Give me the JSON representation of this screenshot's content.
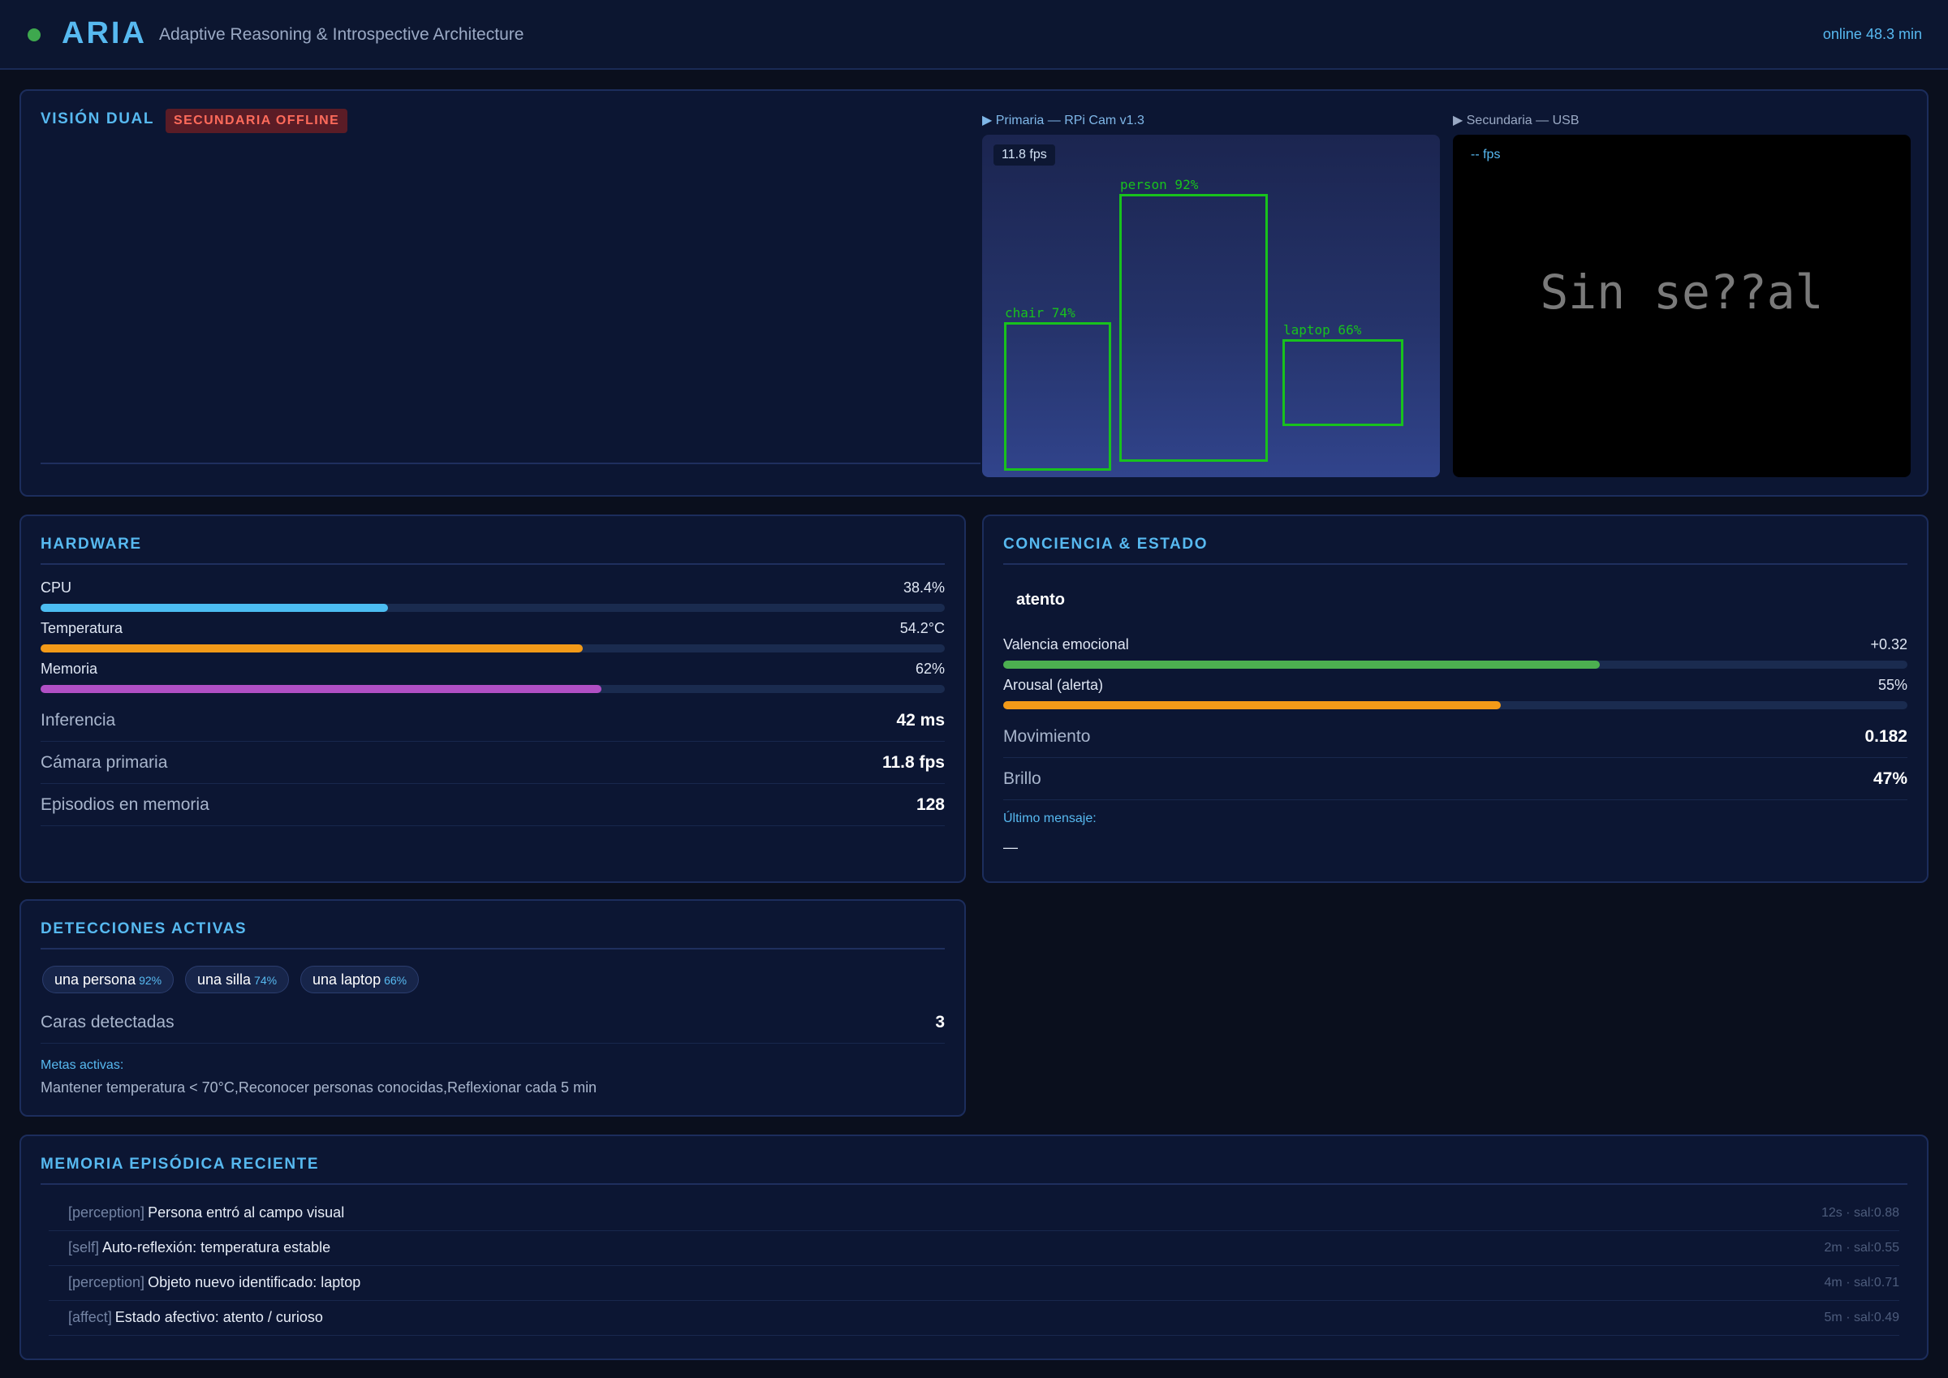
{
  "header": {
    "brand": "ARIA",
    "tagline": "Adaptive Reasoning & Introspective Architecture",
    "uptime": "online 48.3 min"
  },
  "vision": {
    "title": "VISIÓN DUAL",
    "badge": "SECUNDARIA OFFLINE",
    "primary": {
      "label": "▶ Primaria — RPi Cam v1.3",
      "fps": "11.8 fps",
      "detections": [
        {
          "label": "person 92%"
        },
        {
          "label": "chair 74%"
        },
        {
          "label": "laptop 66%"
        }
      ]
    },
    "secondary": {
      "label": "▶ Secundaria — USB",
      "fps": "-- fps",
      "no_signal": "Sin se??al"
    }
  },
  "hardware": {
    "title": "HARDWARE",
    "bars": [
      {
        "label": "CPU",
        "value": "38.4%",
        "fraction": 0.384,
        "color": "#4cbdf2"
      },
      {
        "label": "Temperatura",
        "value": "54.2°C",
        "fraction": 0.6,
        "color": "#f39a18"
      },
      {
        "label": "Memoria",
        "value": "62%",
        "fraction": 0.62,
        "color": "#b04fc4"
      }
    ],
    "stats": [
      {
        "label": "Inferencia",
        "value": "42 ms"
      },
      {
        "label": "Cámara primaria",
        "value": "11.8 fps"
      },
      {
        "label": "Episodios en memoria",
        "value": "128"
      }
    ]
  },
  "conciencia": {
    "title": "CONCIENCIA & ESTADO",
    "state": "atento",
    "bars": [
      {
        "label": "Valencia emocional",
        "value": "+0.32",
        "fraction": 0.66,
        "color": "#4caf50"
      },
      {
        "label": "Arousal (alerta)",
        "value": "55%",
        "fraction": 0.55,
        "color": "#f39a18"
      }
    ],
    "stats": [
      {
        "label": "Movimiento",
        "value": "0.182"
      },
      {
        "label": "Brillo",
        "value": "47%"
      }
    ],
    "last_message_label": "Último mensaje:",
    "last_message": "—"
  },
  "detecciones": {
    "title": "DETECCIONES ACTIVAS",
    "chips": [
      {
        "name": "una persona",
        "pct": "92%"
      },
      {
        "name": "una silla",
        "pct": "74%"
      },
      {
        "name": "una laptop",
        "pct": "66%"
      }
    ],
    "faces_label": "Caras detectadas",
    "faces_value": "3",
    "goals_label": "Metas activas:",
    "goals": "Mantener temperatura < 70°C,Reconocer personas conocidas,Reflexionar cada 5 min"
  },
  "memoria": {
    "title": "MEMORIA EPISÓDICA RECIENTE",
    "entries": [
      {
        "tag": "[perception]",
        "text": "Persona entró al campo visual",
        "meta": "12s · sal:0.88"
      },
      {
        "tag": "[self]",
        "text": "Auto-reflexión: temperatura estable",
        "meta": "2m · sal:0.55"
      },
      {
        "tag": "[perception]",
        "text": "Objeto nuevo identificado: laptop",
        "meta": "4m · sal:0.71"
      },
      {
        "tag": "[affect]",
        "text": "Estado afectivo: atento / curioso",
        "meta": "5m · sal:0.49"
      }
    ]
  }
}
